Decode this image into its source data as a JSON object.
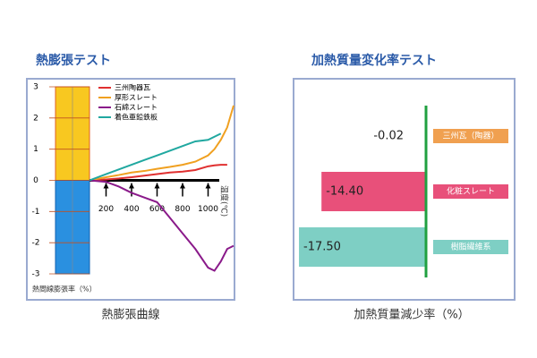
{
  "chart_data": [
    {
      "type": "line",
      "title": "熱膨張テスト",
      "caption": "熱膨張曲線",
      "x_label": "温度(℃)",
      "y_label": "熱間線膨張率（%）",
      "x": [
        70,
        200,
        300,
        400,
        500,
        600,
        700,
        800,
        900,
        1000,
        1050,
        1100,
        1150,
        1200
      ],
      "xlim": [
        0,
        1200
      ],
      "xticks": [
        200,
        400,
        600,
        800,
        1000
      ],
      "ylim": [
        -3,
        3
      ],
      "yticks": [
        3,
        2,
        1,
        0,
        -1,
        -2,
        -3
      ],
      "series": [
        {
          "name": "三州陶器瓦",
          "color": "#e03030",
          "values": [
            0,
            0.03,
            0.06,
            0.1,
            0.15,
            0.2,
            0.25,
            0.28,
            0.33,
            0.45,
            0.48,
            0.5,
            0.5,
            null
          ]
        },
        {
          "name": "厚形スレート",
          "color": "#f0a020",
          "values": [
            0,
            0.1,
            0.17,
            0.25,
            0.3,
            0.37,
            0.43,
            0.5,
            0.6,
            0.8,
            1.0,
            1.3,
            1.7,
            2.4
          ]
        },
        {
          "name": "石綿スレート",
          "color": "#8a1a8a",
          "values": [
            0,
            -0.05,
            -0.2,
            -0.4,
            -0.55,
            -0.7,
            -1.2,
            -1.7,
            -2.2,
            -2.8,
            -2.9,
            -2.6,
            -2.2,
            -2.1
          ]
        },
        {
          "name": "着色亜鉛鉄板",
          "color": "#20a8a0",
          "values": [
            0,
            0.2,
            0.35,
            0.5,
            0.65,
            0.8,
            0.95,
            1.1,
            1.25,
            1.3,
            1.4,
            1.5,
            null,
            null
          ]
        }
      ]
    },
    {
      "type": "hbar",
      "title": "加熱質量変化率テスト",
      "caption": "加熱質量減少率（%）",
      "categories": [
        "三州瓦（陶器）",
        "化粧スレート",
        "樹脂繊維系"
      ],
      "values": [
        -0.02,
        -14.4,
        -17.5
      ],
      "value_labels": [
        "-0.02",
        "-14.40",
        "-17.50"
      ],
      "colors": [
        "#f0a050",
        "#e8507a",
        "#7ecfc4"
      ],
      "xlim": [
        -18,
        0
      ]
    }
  ]
}
